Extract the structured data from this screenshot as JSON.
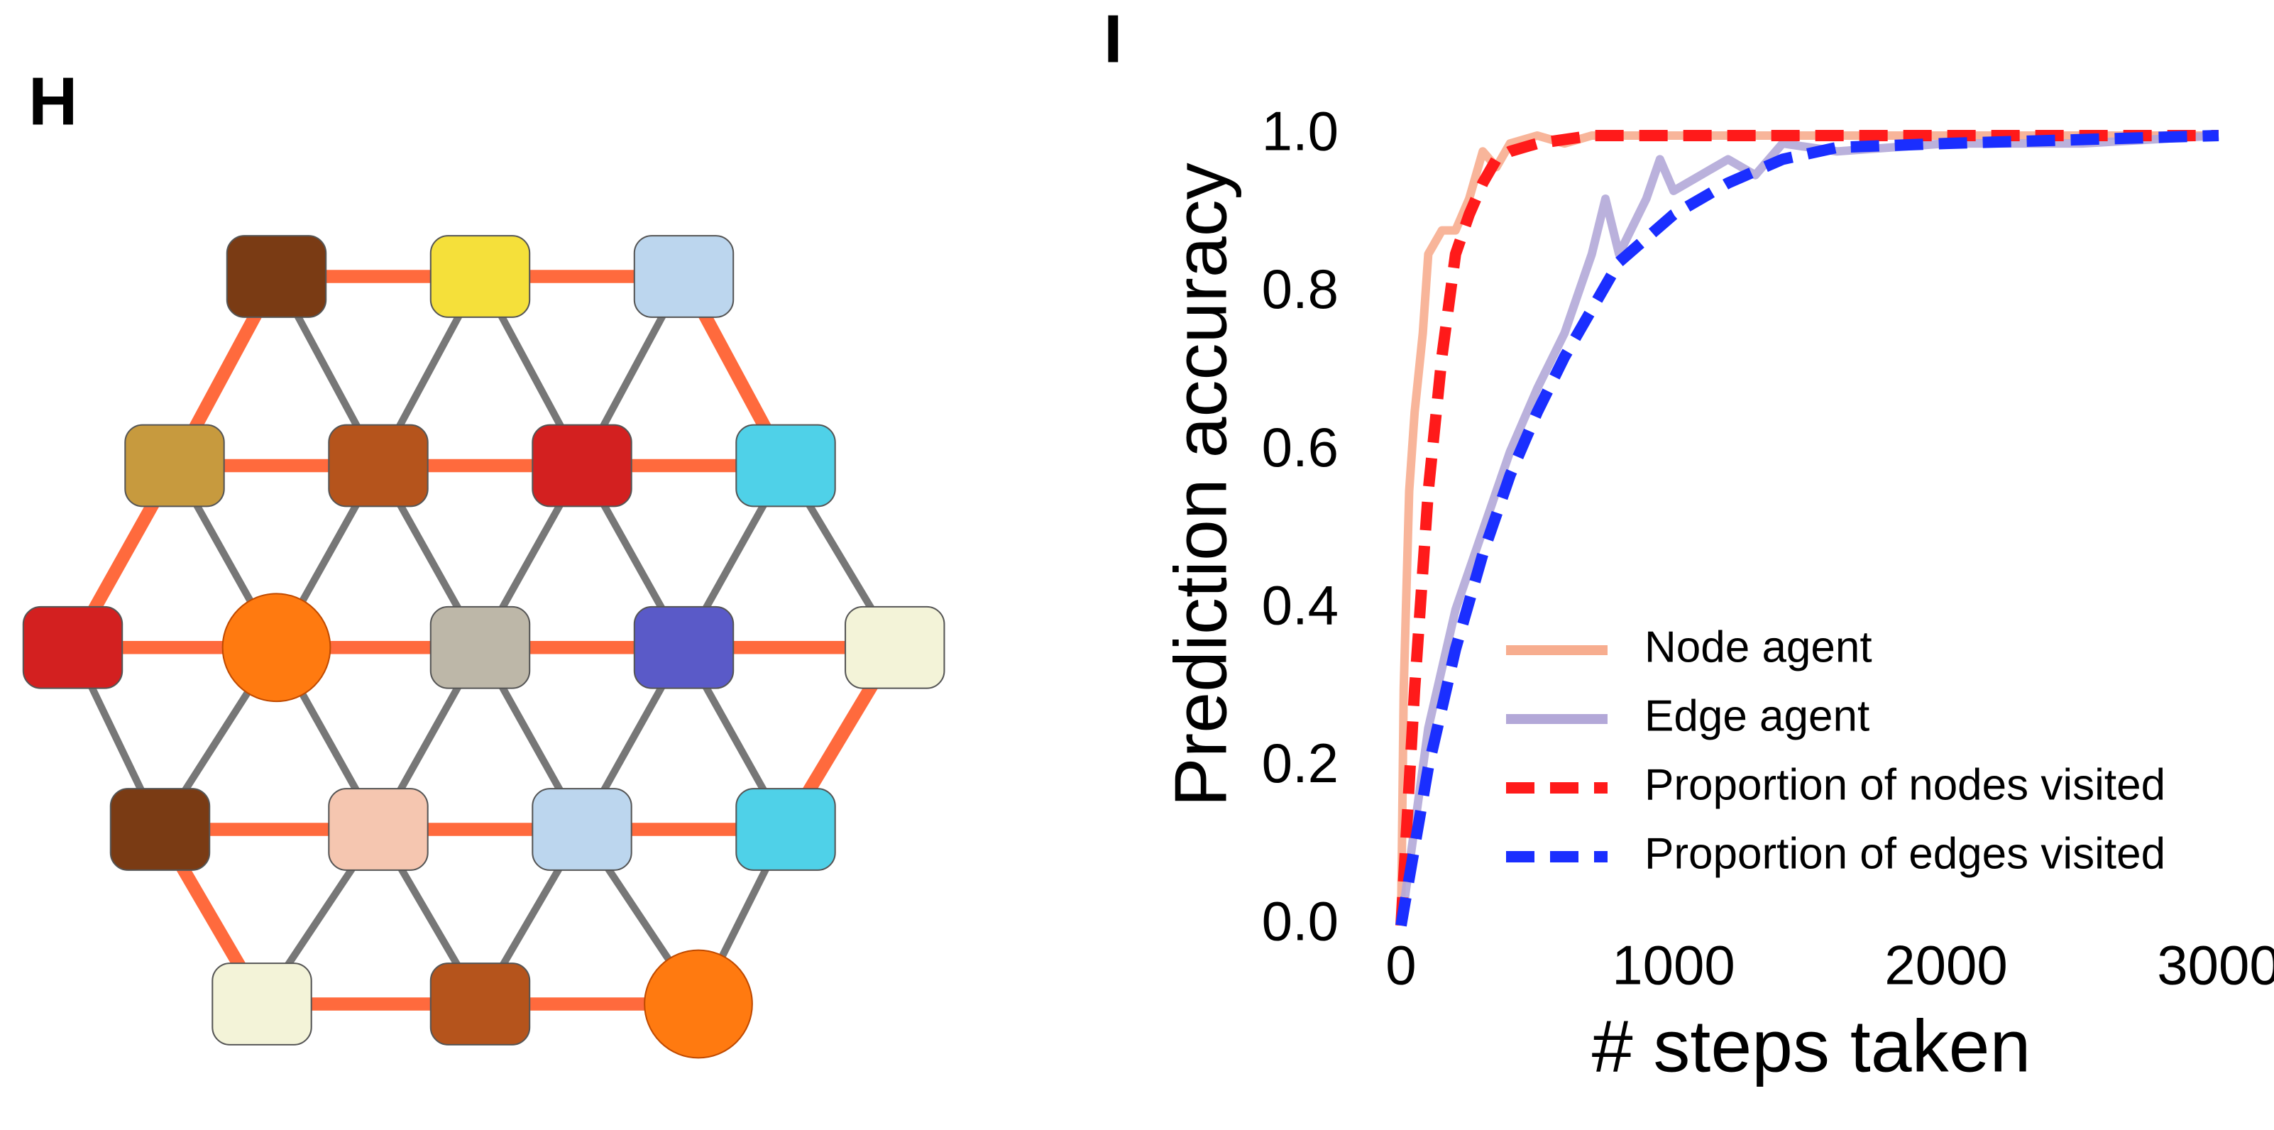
{
  "panel_labels": [
    "H",
    "I"
  ],
  "chart_data": {
    "type": "line",
    "xlabel": "# steps taken",
    "ylabel": "Prediction accuracy",
    "xlim": [
      0,
      3000
    ],
    "ylim": [
      0,
      1
    ],
    "xticks": [
      0,
      1000,
      2000,
      3000
    ],
    "yticks": [
      {
        "value": 0,
        "label": "0.0"
      },
      0.2,
      0.4,
      0.6,
      0.8,
      {
        "value": 1,
        "label": "1.0"
      }
    ],
    "grid": false,
    "legend": "lower right",
    "series": [
      {
        "name": "Node agent",
        "color": "#f7ad8f",
        "dashed": false,
        "x": [
          0,
          10,
          30,
          50,
          80,
          100,
          150,
          200,
          250,
          300,
          350,
          400,
          500,
          600,
          700,
          3000
        ],
        "values": [
          0,
          0.3,
          0.55,
          0.65,
          0.75,
          0.85,
          0.88,
          0.88,
          0.92,
          0.98,
          0.96,
          0.99,
          1.0,
          0.99,
          1.0,
          1.0
        ]
      },
      {
        "name": "Edge agent",
        "color": "#b3a8d8",
        "dashed": false,
        "x": [
          0,
          100,
          200,
          300,
          400,
          500,
          600,
          700,
          750,
          800,
          900,
          950,
          1000,
          1100,
          1200,
          1300,
          1400,
          1600,
          2000,
          2500,
          3000
        ],
        "values": [
          0,
          0.25,
          0.4,
          0.5,
          0.6,
          0.68,
          0.75,
          0.85,
          0.92,
          0.85,
          0.92,
          0.97,
          0.93,
          0.95,
          0.97,
          0.95,
          0.99,
          0.98,
          0.99,
          0.99,
          1.0
        ]
      },
      {
        "name": "Proportion of nodes visited",
        "color": "#ff1a1a",
        "dashed": true,
        "x": [
          0,
          50,
          100,
          150,
          200,
          250,
          300,
          350,
          400,
          500,
          700,
          3000
        ],
        "values": [
          0,
          0.3,
          0.55,
          0.72,
          0.85,
          0.9,
          0.94,
          0.97,
          0.98,
          0.99,
          1.0,
          1.0
        ]
      },
      {
        "name": "Proportion of edges visited",
        "color": "#1a2eff",
        "dashed": true,
        "x": [
          0,
          100,
          200,
          300,
          400,
          500,
          600,
          700,
          800,
          1000,
          1200,
          1400,
          1600,
          2000,
          2500,
          3000
        ],
        "values": [
          0,
          0.2,
          0.35,
          0.47,
          0.57,
          0.65,
          0.72,
          0.78,
          0.84,
          0.9,
          0.94,
          0.97,
          0.985,
          0.99,
          0.995,
          1.0
        ]
      }
    ]
  }
}
